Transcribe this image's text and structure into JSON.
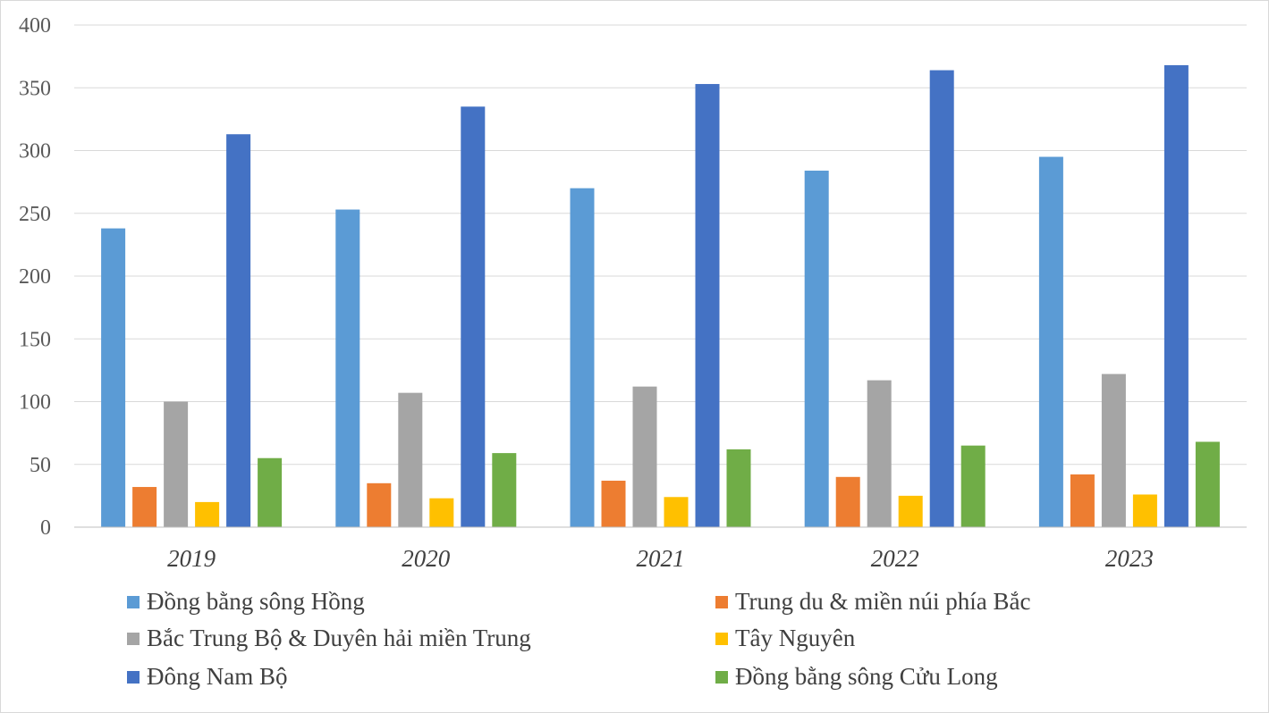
{
  "chart_data": {
    "type": "bar",
    "title": "",
    "xlabel": "",
    "ylabel": "",
    "categories": [
      "2019",
      "2020",
      "2021",
      "2022",
      "2023"
    ],
    "ylim": [
      0,
      400
    ],
    "yticks": [
      0,
      50,
      100,
      150,
      200,
      250,
      300,
      350,
      400
    ],
    "grid": true,
    "legend_position": "bottom",
    "series": [
      {
        "name": "Đồng bằng sông Hồng",
        "color": "#5b9bd5",
        "values": [
          238,
          253,
          270,
          284,
          295
        ]
      },
      {
        "name": "Trung du & miền núi phía Bắc",
        "color": "#ed7d31",
        "values": [
          32,
          35,
          37,
          40,
          42
        ]
      },
      {
        "name": "Bắc Trung Bộ & Duyên hải miền Trung",
        "color": "#a5a5a5",
        "values": [
          100,
          107,
          112,
          117,
          122
        ]
      },
      {
        "name": "Tây Nguyên",
        "color": "#ffc000",
        "values": [
          20,
          23,
          24,
          25,
          26
        ]
      },
      {
        "name": "Đông Nam Bộ",
        "color": "#4472c4",
        "values": [
          313,
          335,
          353,
          364,
          368
        ]
      },
      {
        "name": "Đồng bằng sông Cửu Long",
        "color": "#70ad47",
        "values": [
          55,
          59,
          62,
          65,
          68
        ]
      }
    ]
  }
}
